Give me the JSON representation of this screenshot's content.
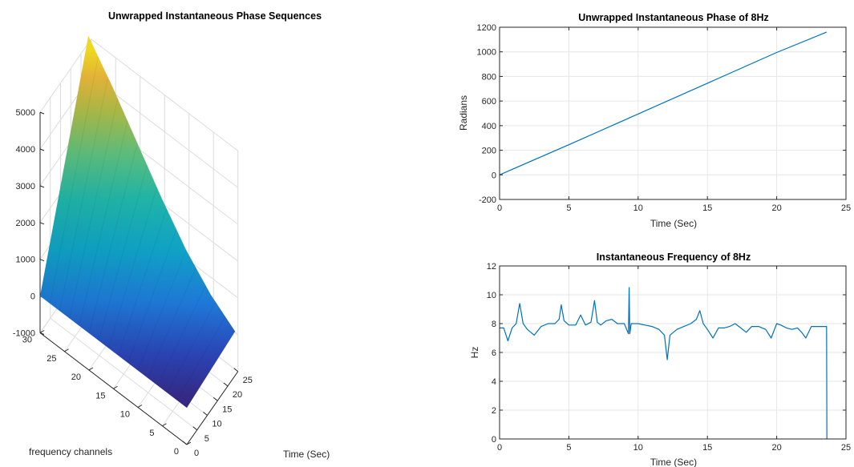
{
  "figure": {
    "surface": {
      "title": "Unwrapped Instantaneous Phase Sequences",
      "xlabel": "Time (Sec)",
      "ylabel": "frequency channels",
      "zlabel": "",
      "time_ticks": [
        "0",
        "5",
        "10",
        "15",
        "20",
        "25"
      ],
      "channel_ticks": [
        "0",
        "5",
        "10",
        "15",
        "20",
        "25",
        "30"
      ],
      "z_ticks": [
        "-1000",
        "0",
        "1000",
        "2000",
        "3000",
        "4000",
        "5000"
      ],
      "colormap": "parula",
      "grid": true
    },
    "phase": {
      "title": "Unwrapped Instantaneous Phase of 8Hz",
      "xlabel": "Time (Sec)",
      "ylabel": "Radians",
      "xticks": [
        "0",
        "5",
        "10",
        "15",
        "20",
        "25"
      ],
      "yticks": [
        "-200",
        "0",
        "200",
        "400",
        "600",
        "800",
        "1000",
        "1200"
      ],
      "color": "#0072BD"
    },
    "freq": {
      "title": "Instantaneous Frequency of 8Hz",
      "xlabel": "Time (Sec)",
      "ylabel": "Hz",
      "xticks": [
        "0",
        "5",
        "10",
        "15",
        "20",
        "25"
      ],
      "yticks": [
        "0",
        "2",
        "4",
        "6",
        "8",
        "10",
        "12"
      ],
      "color": "#0072BD"
    }
  },
  "chart_data": [
    {
      "type": "surface",
      "title": "Unwrapped Instantaneous Phase Sequences",
      "xlabel": "Time (Sec)",
      "ylabel": "frequency channels",
      "xlim": [
        0,
        25
      ],
      "ylim": [
        0,
        30
      ],
      "zlim": [
        -1000,
        5000
      ],
      "time_end": 23.6,
      "channels": 30,
      "z_at_end_by_channel": [
        [
          0,
          200
        ],
        [
          5,
          700
        ],
        [
          10,
          1400
        ],
        [
          15,
          2300
        ],
        [
          20,
          3300
        ],
        [
          25,
          4300
        ],
        [
          30,
          5200
        ]
      ],
      "z_at_start": 0,
      "grid": true
    },
    {
      "type": "line",
      "title": "Unwrapped Instantaneous Phase of 8Hz",
      "xlabel": "Time (Sec)",
      "ylabel": "Radians",
      "xlim": [
        0,
        25
      ],
      "ylim": [
        -200,
        1200
      ],
      "x": [
        0,
        5,
        10,
        15,
        20,
        23.6
      ],
      "y": [
        0,
        245,
        495,
        745,
        995,
        1160
      ],
      "grid": true
    },
    {
      "type": "line",
      "title": "Instantaneous Frequency of 8Hz",
      "xlabel": "Time (Sec)",
      "ylabel": "Hz",
      "xlim": [
        0,
        25
      ],
      "ylim": [
        0,
        12
      ],
      "x": [
        0,
        0.3,
        0.6,
        0.9,
        1.2,
        1.45,
        1.7,
        2.0,
        2.5,
        3.0,
        3.5,
        4.0,
        4.3,
        4.45,
        4.65,
        5.0,
        5.5,
        5.85,
        6.2,
        6.6,
        6.85,
        7.05,
        7.3,
        7.7,
        8.1,
        8.5,
        9.0,
        9.3,
        9.35,
        9.4,
        9.5,
        9.7,
        10.0,
        10.5,
        11.0,
        11.5,
        11.9,
        12.1,
        12.3,
        12.8,
        13.3,
        13.8,
        14.2,
        14.45,
        14.7,
        15.0,
        15.4,
        15.8,
        16.2,
        16.6,
        17.0,
        17.4,
        17.8,
        18.2,
        18.7,
        19.2,
        19.6,
        20.0,
        20.3,
        20.7,
        21.1,
        21.5,
        21.8,
        22.1,
        22.5,
        23.0,
        23.55,
        23.6,
        23.62
      ],
      "y": [
        7.7,
        7.7,
        6.8,
        7.7,
        8.0,
        9.4,
        8.0,
        7.6,
        7.2,
        7.8,
        8.0,
        8.0,
        8.3,
        9.3,
        8.2,
        7.9,
        7.9,
        8.6,
        7.9,
        8.1,
        9.6,
        8.1,
        7.9,
        8.2,
        8.3,
        8.0,
        8.0,
        7.3,
        10.5,
        7.3,
        8.0,
        8.0,
        8.0,
        7.9,
        7.8,
        7.6,
        7.2,
        5.5,
        7.2,
        7.6,
        7.8,
        8.0,
        8.3,
        8.9,
        8.0,
        7.6,
        7.0,
        7.7,
        7.7,
        7.8,
        8.0,
        7.7,
        7.4,
        7.8,
        7.8,
        7.6,
        7.0,
        8.0,
        7.9,
        7.7,
        7.6,
        7.7,
        7.4,
        7.0,
        7.8,
        7.8,
        7.8,
        7.8,
        0
      ],
      "grid": true
    }
  ]
}
